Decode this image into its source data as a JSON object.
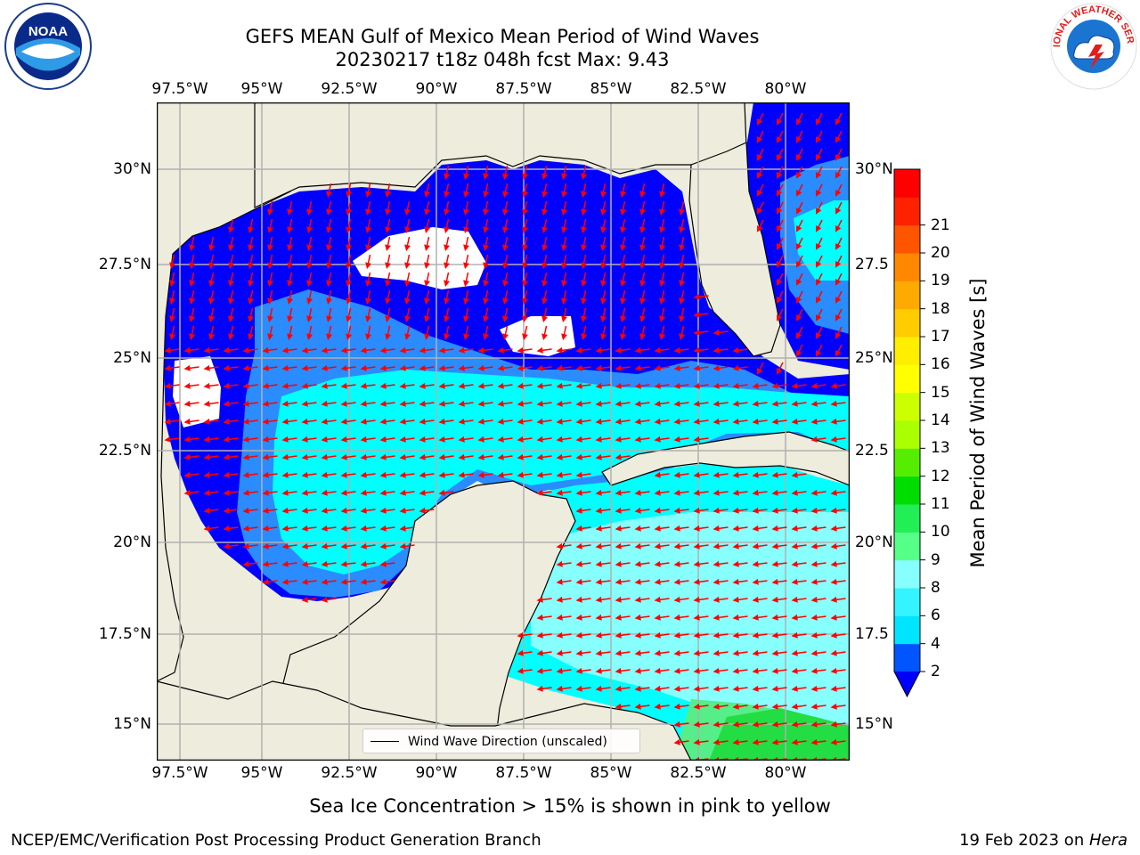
{
  "header": {
    "title_line1": "GEFS MEAN Gulf of Mexico Mean Period of Wind Waves",
    "title_line2": "20230217 t18z 048h fcst   Max: 9.43"
  },
  "map": {
    "lon_ticks": [
      "97.5°W",
      "95°W",
      "92.5°W",
      "90°W",
      "87.5°W",
      "85°W",
      "82.5°W",
      "80°W"
    ],
    "lat_ticks_left": [
      "30°N",
      "27.5°N",
      "25°N",
      "22.5°N",
      "20°N",
      "17.5°N",
      "15°N"
    ],
    "lat_ticks_right": [
      "30°N",
      "27.5",
      "25°N",
      "22.5",
      "20°N",
      "17.5",
      "15°N"
    ],
    "legend_label": "Wind Wave Direction (unscaled)",
    "colors": {
      "land": "#eeecdd",
      "gridline": "#b0b0b0",
      "arrow": "#ff0000",
      "band_2_4": "#0000ff",
      "band_4_6": "#2a8cff",
      "band_6_8": "#00ffff",
      "band_8_9": "#88ffff",
      "band_9_10": "#55ee88",
      "band_10_11": "#22dd44"
    },
    "wind_wave_direction": "westward across the southern Gulf and Caribbean; southward in the northern Gulf"
  },
  "colorbar": {
    "label": "Mean Period of Wind Waves [s]",
    "ticks": [
      "2",
      "4",
      "6",
      "8",
      "9",
      "10",
      "11",
      "12",
      "13",
      "14",
      "15",
      "16",
      "17",
      "18",
      "19",
      "20",
      "21"
    ],
    "colors": [
      "#0055ff",
      "#00e5ff",
      "#33f4ff",
      "#88ffff",
      "#55ff88",
      "#22ee55",
      "#00dd00",
      "#55ee00",
      "#aaff00",
      "#ccff00",
      "#ffff00",
      "#ffee00",
      "#ffcc00",
      "#ffaa00",
      "#ff8800",
      "#ff5500",
      "#ff2200",
      "#ff0000"
    ],
    "extend_color": "#0000ff"
  },
  "notes": {
    "sea_ice": "Sea Ice Concentration > 15% is shown in pink to yellow"
  },
  "footer": {
    "left": "NCEP/EMC/Verification Post Processing Product Generation Branch",
    "right_prefix": "19 Feb 2023 on ",
    "right_host": "Hera"
  },
  "logos": {
    "noaa_text": "NOAA",
    "nws_text": "NATIONAL WEATHER SERVICE"
  }
}
